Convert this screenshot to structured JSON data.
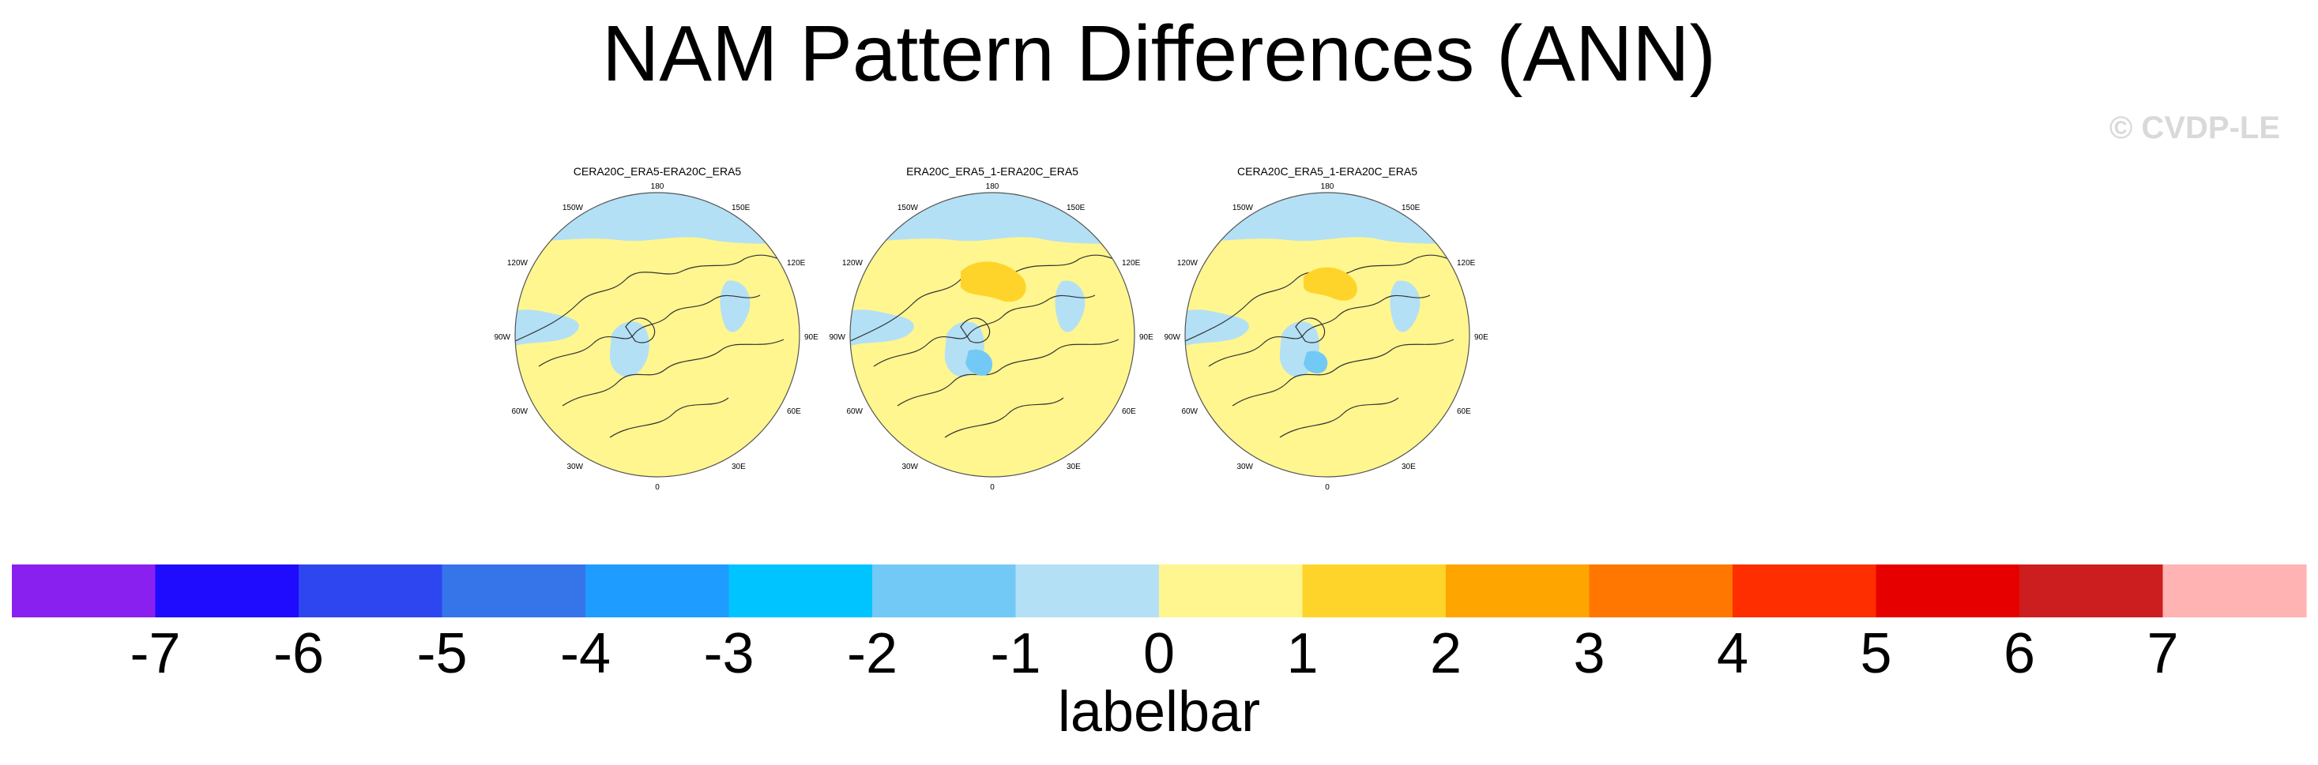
{
  "title": "NAM Pattern Differences (ANN)",
  "watermark": "© CVDP-LE",
  "panel_titles": [
    "CERA20C_ERA5-ERA20C_ERA5",
    "ERA20C_ERA5_1-ERA20C_ERA5",
    "CERA20C_ERA5_1-ERA20C_ERA5"
  ],
  "lon_labels": {
    "top": "180",
    "bottom": "0",
    "right_upper_1": "150E",
    "right_upper_2": "120E",
    "right_mid": "90E",
    "right_lower_1": "60E",
    "right_lower_2": "30E",
    "left_upper_1": "150W",
    "left_upper_2": "120W",
    "left_mid": "90W",
    "left_lower_1": "60W",
    "left_lower_2": "30W"
  },
  "labelbar_title": "labelbar",
  "chart_data": {
    "type": "heatmap",
    "projection": "polar stereographic (Northern Hemisphere)",
    "panels": [
      "CERA20C_ERA5-ERA20C_ERA5",
      "ERA20C_ERA5_1-ERA20C_ERA5",
      "CERA20C_ERA5_1-ERA20C_ERA5"
    ],
    "colorbar": {
      "levels": [
        -7,
        -6,
        -5,
        -4,
        -3,
        -2,
        -1,
        0,
        1,
        2,
        3,
        4,
        5,
        6,
        7
      ],
      "tick_labels": [
        "-7",
        "-6",
        "-5",
        "-4",
        "-3",
        "-2",
        "-1",
        "0",
        "1",
        "2",
        "3",
        "4",
        "5",
        "6",
        "7"
      ],
      "colors": [
        "#8a20f0",
        "#1f0cff",
        "#2e46f0",
        "#3674ea",
        "#1f9cff",
        "#00c4ff",
        "#73c9f5",
        "#b3e0f5",
        "#fff68f",
        "#ffd42a",
        "#ffa500",
        "#ff7700",
        "#ff2e00",
        "#e60000",
        "#cc1e1e",
        "#ffb3b3"
      ]
    }
  }
}
